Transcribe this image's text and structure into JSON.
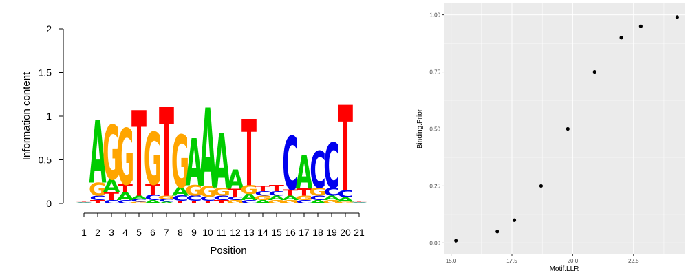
{
  "colors": {
    "A": "#00cc00",
    "C": "#0000ee",
    "G": "#ffa500",
    "T": "#ff0000",
    "panel_bg": "#ebebeb",
    "grid": "#ffffff",
    "point": "#000000"
  },
  "chart_data": [
    {
      "type": "sequence-logo",
      "ylabel": "Information content",
      "xlabel": "Position",
      "ylim": [
        0,
        2
      ],
      "yticks": [
        "0",
        "0.5",
        "1",
        "1.5",
        "2"
      ],
      "yticks_values": [
        0,
        0.5,
        1,
        1.5,
        2
      ],
      "positions": [
        "1",
        "2",
        "3",
        "4",
        "5",
        "6",
        "7",
        "8",
        "9",
        "10",
        "11",
        "12",
        "13",
        "14",
        "15",
        "16",
        "17",
        "18",
        "19",
        "20",
        "21"
      ],
      "stacks": [
        [
          [
            "G",
            0.006
          ],
          [
            "A",
            0.006
          ],
          [
            "C",
            0.006
          ],
          [
            "T",
            0.006
          ]
        ],
        [
          [
            "T",
            0.04
          ],
          [
            "C",
            0.05
          ],
          [
            "G",
            0.15
          ],
          [
            "A",
            0.72
          ]
        ],
        [
          [
            "C",
            0.04
          ],
          [
            "T",
            0.09
          ],
          [
            "A",
            0.15
          ],
          [
            "G",
            0.62
          ]
        ],
        [
          [
            "C",
            0.04
          ],
          [
            "A",
            0.09
          ],
          [
            "T",
            0.09
          ],
          [
            "G",
            0.64
          ]
        ],
        [
          [
            "G",
            0.02
          ],
          [
            "C",
            0.03
          ],
          [
            "A",
            0.04
          ],
          [
            "T",
            0.98
          ]
        ],
        [
          [
            "A",
            0.04
          ],
          [
            "C",
            0.06
          ],
          [
            "T",
            0.12
          ],
          [
            "G",
            0.6
          ]
        ],
        [
          [
            "A",
            0.02
          ],
          [
            "C",
            0.03
          ],
          [
            "G",
            0.04
          ],
          [
            "T",
            1.02
          ]
        ],
        [
          [
            "T",
            0.03
          ],
          [
            "C",
            0.06
          ],
          [
            "A",
            0.1
          ],
          [
            "G",
            0.6
          ]
        ],
        [
          [
            "T",
            0.03
          ],
          [
            "C",
            0.06
          ],
          [
            "G",
            0.12
          ],
          [
            "A",
            0.54
          ]
        ],
        [
          [
            "T",
            0.03
          ],
          [
            "C",
            0.05
          ],
          [
            "G",
            0.12
          ],
          [
            "A",
            0.9
          ]
        ],
        [
          [
            "T",
            0.04
          ],
          [
            "C",
            0.05
          ],
          [
            "G",
            0.09
          ],
          [
            "A",
            0.62
          ]
        ],
        [
          [
            "G",
            0.04
          ],
          [
            "C",
            0.04
          ],
          [
            "T",
            0.09
          ],
          [
            "A",
            0.22
          ]
        ],
        [
          [
            "C",
            0.04
          ],
          [
            "A",
            0.07
          ],
          [
            "G",
            0.1
          ],
          [
            "T",
            0.76
          ]
        ],
        [
          [
            "A",
            0.04
          ],
          [
            "G",
            0.05
          ],
          [
            "C",
            0.05
          ],
          [
            "T",
            0.06
          ]
        ],
        [
          [
            "G",
            0.04
          ],
          [
            "A",
            0.05
          ],
          [
            "C",
            0.05
          ],
          [
            "T",
            0.07
          ]
        ],
        [
          [
            "G",
            0.04
          ],
          [
            "A",
            0.05
          ],
          [
            "T",
            0.07
          ],
          [
            "C",
            0.61
          ]
        ],
        [
          [
            "C",
            0.04
          ],
          [
            "G",
            0.05
          ],
          [
            "T",
            0.08
          ],
          [
            "A",
            0.38
          ]
        ],
        [
          [
            "A",
            0.04
          ],
          [
            "C",
            0.05
          ],
          [
            "G",
            0.09
          ],
          [
            "C",
            0.42
          ]
        ],
        [
          [
            "G",
            0.04
          ],
          [
            "A",
            0.05
          ],
          [
            "C",
            0.09
          ],
          [
            "C",
            0.52
          ]
        ],
        [
          [
            "G",
            0.02
          ],
          [
            "A",
            0.05
          ],
          [
            "C",
            0.08
          ],
          [
            "T",
            0.98
          ]
        ],
        [
          [
            "G",
            0.006
          ],
          [
            "A",
            0.006
          ],
          [
            "C",
            0.006
          ],
          [
            "T",
            0.006
          ]
        ]
      ]
    },
    {
      "type": "scatter",
      "xlabel": "Motif.LLR",
      "ylabel": "Binding.Prior",
      "xlim": [
        14.7,
        24.6
      ],
      "ylim": [
        -0.05,
        1.05
      ],
      "xticks": [
        "15.0",
        "17.5",
        "20.0",
        "22.5"
      ],
      "xticks_values": [
        15.0,
        17.5,
        20.0,
        22.5
      ],
      "yticks": [
        "0.00",
        "0.25",
        "0.50",
        "0.75",
        "1.00"
      ],
      "yticks_values": [
        0.0,
        0.25,
        0.5,
        0.75,
        1.0
      ],
      "points": [
        {
          "x": 15.2,
          "y": 0.01
        },
        {
          "x": 16.9,
          "y": 0.05
        },
        {
          "x": 17.6,
          "y": 0.1
        },
        {
          "x": 18.7,
          "y": 0.25
        },
        {
          "x": 19.8,
          "y": 0.5
        },
        {
          "x": 20.9,
          "y": 0.75
        },
        {
          "x": 22.0,
          "y": 0.9
        },
        {
          "x": 22.8,
          "y": 0.95
        },
        {
          "x": 24.3,
          "y": 0.99
        }
      ]
    }
  ]
}
